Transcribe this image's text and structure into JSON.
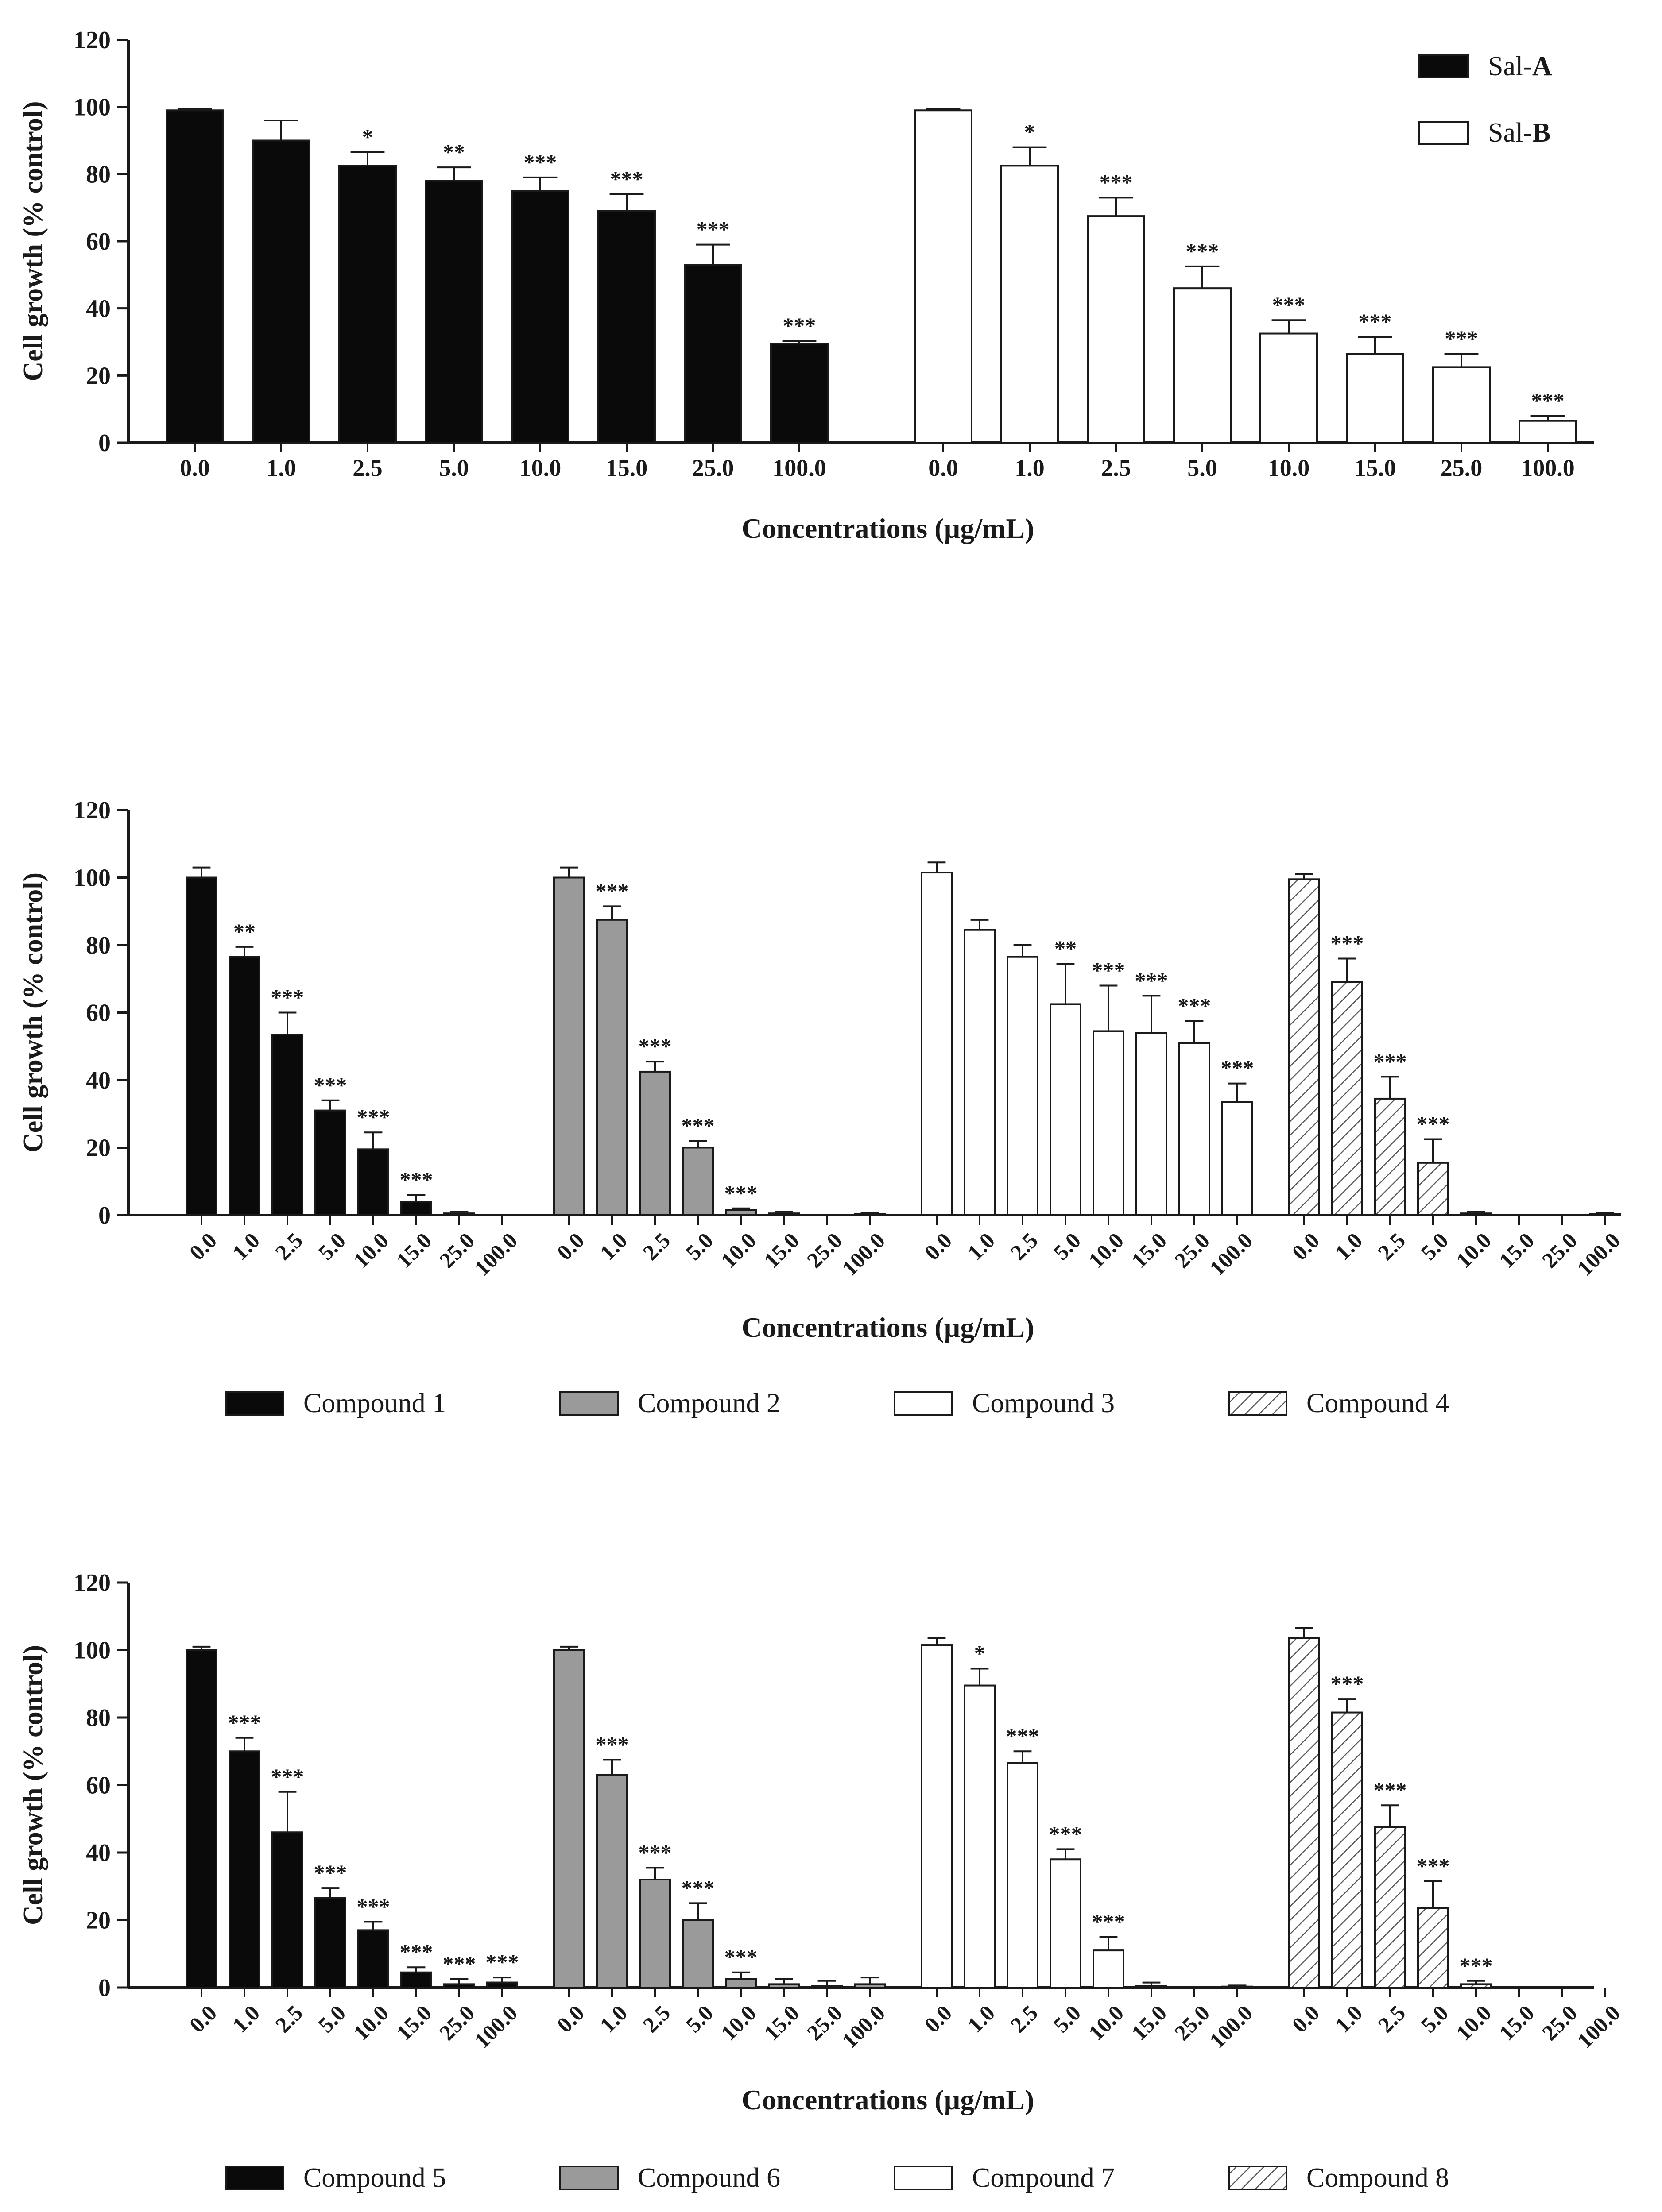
{
  "xlabel": "Concentrations (µg/mL)",
  "ylabel": "Cell growth (% control)",
  "colors": {
    "black": "#0a0a0a",
    "gray": "#9a9a9a",
    "white": "#ffffff",
    "hatch": "#5a5a5a",
    "axis": "#1a1a1a"
  },
  "chart_data": [
    {
      "type": "bar",
      "title": "",
      "xlabel": "Concentrations (µg/mL)",
      "ylabel": "Cell growth (% control)",
      "ylim": [
        0,
        120
      ],
      "yticks": [
        0,
        20,
        40,
        60,
        80,
        100,
        120
      ],
      "categories": [
        "0.0",
        "1.0",
        "2.5",
        "5.0",
        "10.0",
        "15.0",
        "25.0",
        "100.0"
      ],
      "tick_rotation": 0,
      "legend_position": "top-right",
      "series": [
        {
          "name": "Sal-A",
          "prefix": "Sal-",
          "suffix": "A",
          "fill": "black",
          "values": [
            99,
            90,
            82.5,
            78,
            75,
            69,
            53,
            29.5
          ],
          "errors": [
            0.5,
            6,
            4,
            4,
            4,
            5,
            6,
            0.8
          ],
          "significance": [
            "",
            "",
            "*",
            "**",
            "***",
            "***",
            "***",
            "***"
          ]
        },
        {
          "name": "Sal-B",
          "prefix": "Sal-",
          "suffix": "B",
          "fill": "white",
          "values": [
            99,
            82.5,
            67.5,
            46,
            32.5,
            26.5,
            22.5,
            6.5
          ],
          "errors": [
            0.5,
            5.5,
            5.5,
            6.5,
            4,
            5,
            4,
            1.5
          ],
          "significance": [
            "",
            "*",
            "***",
            "***",
            "***",
            "***",
            "***",
            "***"
          ]
        }
      ]
    },
    {
      "type": "bar",
      "title": "",
      "xlabel": "Concentrations (µg/mL)",
      "ylabel": "Cell growth (% control)",
      "ylim": [
        0,
        120
      ],
      "yticks": [
        0,
        20,
        40,
        60,
        80,
        100,
        120
      ],
      "categories": [
        "0.0",
        "1.0",
        "2.5",
        "5.0",
        "10.0",
        "15.0",
        "25.0",
        "100.0"
      ],
      "tick_rotation": -45,
      "legend_position": "bottom",
      "series": [
        {
          "name": "Compound 1",
          "fill": "black",
          "values": [
            100,
            76.5,
            53.5,
            31,
            19.5,
            4,
            0.5,
            0
          ],
          "errors": [
            3,
            3,
            6.5,
            3,
            5,
            2,
            0.5,
            0
          ],
          "significance": [
            "",
            "**",
            "***",
            "***",
            "***",
            "***",
            "",
            ""
          ]
        },
        {
          "name": "Compound 2",
          "fill": "gray",
          "values": [
            100,
            87.5,
            42.5,
            20,
            1.5,
            0.5,
            0,
            0.3
          ],
          "errors": [
            3,
            4,
            3,
            2,
            0.5,
            0.5,
            0,
            0.3
          ],
          "significance": [
            "",
            "***",
            "***",
            "***",
            "***",
            "",
            "",
            ""
          ]
        },
        {
          "name": "Compound 3",
          "fill": "white",
          "values": [
            101.5,
            84.5,
            76.5,
            62.5,
            54.5,
            54,
            51,
            33.5
          ],
          "errors": [
            3,
            3,
            3.5,
            12,
            13.5,
            11,
            6.5,
            5.5
          ],
          "significance": [
            "",
            "",
            "",
            "**",
            "***",
            "***",
            "***",
            "***"
          ]
        },
        {
          "name": "Compound 4",
          "fill": "hatch",
          "values": [
            99.5,
            69,
            34.5,
            15.5,
            0.5,
            0,
            0,
            0.3
          ],
          "errors": [
            1.5,
            7,
            6.5,
            7,
            0.5,
            0,
            0,
            0.3
          ],
          "significance": [
            "",
            "***",
            "***",
            "***",
            "",
            "",
            "",
            ""
          ]
        }
      ]
    },
    {
      "type": "bar",
      "title": "",
      "xlabel": "Concentrations (µg/mL)",
      "ylabel": "Cell growth (% control)",
      "ylim": [
        0,
        120
      ],
      "yticks": [
        0,
        20,
        40,
        60,
        80,
        100,
        120
      ],
      "categories": [
        "0.0",
        "1.0",
        "2.5",
        "5.0",
        "10.0",
        "15.0",
        "25.0",
        "100.0"
      ],
      "tick_rotation": -45,
      "legend_position": "bottom",
      "series": [
        {
          "name": "Compound 5",
          "fill": "black",
          "values": [
            100,
            70,
            46,
            26.5,
            17,
            4.5,
            1,
            1.5
          ],
          "errors": [
            1,
            4,
            12,
            3,
            2.5,
            1.5,
            1.5,
            1.5
          ],
          "significance": [
            "",
            "***",
            "***",
            "***",
            "***",
            "***",
            "***",
            "***"
          ]
        },
        {
          "name": "Compound 6",
          "fill": "gray",
          "values": [
            100,
            63,
            32,
            20,
            2.5,
            1,
            0.5,
            1
          ],
          "errors": [
            1,
            4.5,
            3.5,
            5,
            2,
            1.5,
            1.5,
            2
          ],
          "significance": [
            "",
            "***",
            "***",
            "***",
            "***",
            "",
            "",
            ""
          ]
        },
        {
          "name": "Compound 7",
          "fill": "white",
          "values": [
            101.5,
            89.5,
            66.5,
            38,
            11,
            0.5,
            0,
            0.3
          ],
          "errors": [
            2,
            5,
            3.5,
            3,
            4,
            1,
            0,
            0.3
          ],
          "significance": [
            "",
            "*",
            "***",
            "***",
            "***",
            "",
            "",
            ""
          ]
        },
        {
          "name": "Compound 8",
          "fill": "hatch",
          "values": [
            103.5,
            81.5,
            47.5,
            23.5,
            1,
            0,
            0,
            0
          ],
          "errors": [
            3,
            4,
            6.5,
            8,
            1,
            0,
            0,
            0
          ],
          "significance": [
            "",
            "***",
            "***",
            "***",
            "***",
            "",
            "",
            ""
          ]
        }
      ]
    }
  ]
}
